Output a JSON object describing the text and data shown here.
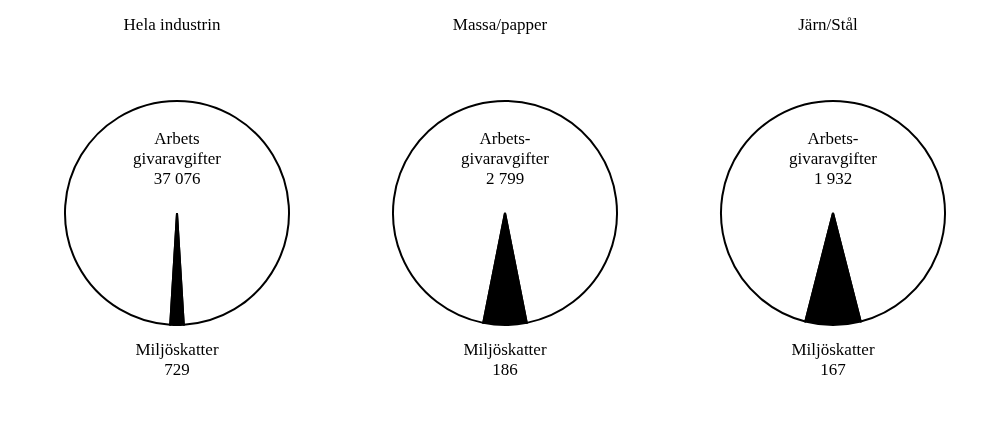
{
  "chart_data": [
    {
      "type": "pie",
      "title": "Hela industrin",
      "categories": [
        "Arbets\ngivaravgifter",
        "Miljöskatter"
      ],
      "values": [
        37076,
        729
      ],
      "value_labels": [
        "37 076",
        "729"
      ],
      "colors": [
        "#ffffff",
        "#000000"
      ]
    },
    {
      "type": "pie",
      "title": "Massa/papper",
      "categories": [
        "Arbets-\ngivaravgifter",
        "Miljöskatter"
      ],
      "values": [
        2799,
        186
      ],
      "value_labels": [
        "2 799",
        "186"
      ],
      "colors": [
        "#ffffff",
        "#000000"
      ]
    },
    {
      "type": "pie",
      "title": "Järn/Stål",
      "categories": [
        "Arbets-\ngivaravgifter",
        "Miljöskatter"
      ],
      "values": [
        1932,
        167
      ],
      "value_labels": [
        "1 932",
        "167"
      ],
      "colors": [
        "#ffffff",
        "#000000"
      ]
    }
  ]
}
